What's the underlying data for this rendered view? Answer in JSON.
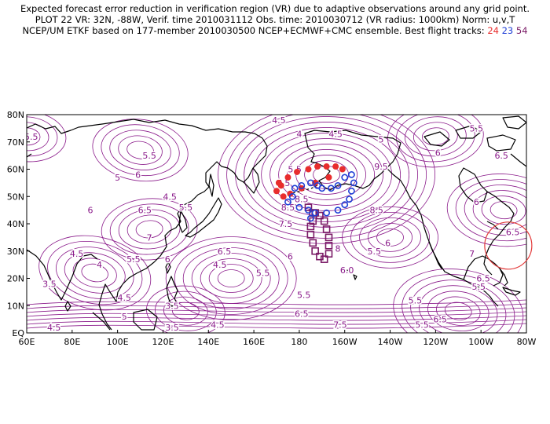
{
  "header": {
    "line1": "Expected forecast error reduction in verification region (VR) due to adaptive observations around any grid point.",
    "line2": "PLOT 22 VR: 32N, -88W, Verif. time 2010031112 Obs. time: 2010030712 (VR radius: 1000km) Norm: u,v,T",
    "line3_prefix": "NCEP/UM ETKF based on 177-member 2010030500 NCEP+ECMWF+CMC ensemble. Best flight tracks:",
    "track_24": "24",
    "track_23": "23",
    "track_54": "54"
  },
  "colors": {
    "contour": "#8a1a8a",
    "track_24": "#e82d2d",
    "track_23": "#1f3fd6",
    "track_54": "#7a1b66",
    "verification_circle": "#e33b3b",
    "coastline": "#000000"
  },
  "axes": {
    "lat_labels": [
      "80N",
      "70N",
      "60N",
      "50N",
      "40N",
      "30N",
      "20N",
      "10N",
      "EQ"
    ],
    "lon_labels": [
      "60E",
      "80E",
      "100E",
      "120E",
      "140E",
      "160E",
      "180",
      "160W",
      "140W",
      "120W",
      "100W",
      "80W"
    ]
  },
  "contour_labels": [
    {
      "text": "4.5",
      "lon": 171,
      "lat": 78
    },
    {
      "text": "5.5",
      "lon": 62,
      "lat": 72
    },
    {
      "text": "5.5",
      "lon": 114,
      "lat": 65
    },
    {
      "text": "4",
      "lon": 180,
      "lat": 73
    },
    {
      "text": "4.5",
      "lon": 196,
      "lat": 73
    },
    {
      "text": "5",
      "lon": 216,
      "lat": 71
    },
    {
      "text": "5.5",
      "lon": 258,
      "lat": 75
    },
    {
      "text": "6",
      "lon": 109,
      "lat": 58
    },
    {
      "text": "5",
      "lon": 100,
      "lat": 57
    },
    {
      "text": "6.5",
      "lon": 269,
      "lat": 65
    },
    {
      "text": "5.5",
      "lon": 178,
      "lat": 60
    },
    {
      "text": "7.5",
      "lon": 173,
      "lat": 55
    },
    {
      "text": "9.5",
      "lon": 216,
      "lat": 61
    },
    {
      "text": "4.5",
      "lon": 123,
      "lat": 50
    },
    {
      "text": "5.5",
      "lon": 130,
      "lat": 46
    },
    {
      "text": "6",
      "lon": 241,
      "lat": 66
    },
    {
      "text": "8.5",
      "lon": 181,
      "lat": 49
    },
    {
      "text": "6",
      "lon": 88,
      "lat": 45
    },
    {
      "text": "6.5",
      "lon": 112,
      "lat": 45
    },
    {
      "text": "8.5",
      "lon": 175,
      "lat": 46
    },
    {
      "text": "8.5",
      "lon": 214,
      "lat": 45
    },
    {
      "text": "6",
      "lon": 258,
      "lat": 48
    },
    {
      "text": "7.5",
      "lon": 174,
      "lat": 40
    },
    {
      "text": "7",
      "lon": 114,
      "lat": 35
    },
    {
      "text": "6.5",
      "lon": 274,
      "lat": 37
    },
    {
      "text": "4.5",
      "lon": 82,
      "lat": 29
    },
    {
      "text": "5.5",
      "lon": 107,
      "lat": 27
    },
    {
      "text": "6",
      "lon": 122,
      "lat": 27
    },
    {
      "text": "6.5",
      "lon": 147,
      "lat": 30
    },
    {
      "text": "6",
      "lon": 176,
      "lat": 28
    },
    {
      "text": "8",
      "lon": 197,
      "lat": 31
    },
    {
      "text": "5.5",
      "lon": 213,
      "lat": 30
    },
    {
      "text": "6",
      "lon": 219,
      "lat": 33
    },
    {
      "text": "7",
      "lon": 256,
      "lat": 29
    },
    {
      "text": "4",
      "lon": 92,
      "lat": 25
    },
    {
      "text": "5.5",
      "lon": 164,
      "lat": 22
    },
    {
      "text": "4.5",
      "lon": 145,
      "lat": 25
    },
    {
      "text": "6.0",
      "lon": 201,
      "lat": 23
    },
    {
      "text": "6.5",
      "lon": 261,
      "lat": 20
    },
    {
      "text": "3.5",
      "lon": 70,
      "lat": 18
    },
    {
      "text": "5.5",
      "lon": 259,
      "lat": 17
    },
    {
      "text": "4.5",
      "lon": 103,
      "lat": 13
    },
    {
      "text": "5.5",
      "lon": 182,
      "lat": 14
    },
    {
      "text": "5.5",
      "lon": 231,
      "lat": 12
    },
    {
      "text": "3.5",
      "lon": 124,
      "lat": 10
    },
    {
      "text": "6.5",
      "lon": 181,
      "lat": 7
    },
    {
      "text": "5",
      "lon": 103,
      "lat": 6
    },
    {
      "text": "4.5",
      "lon": 72,
      "lat": 2
    },
    {
      "text": "3.5",
      "lon": 124,
      "lat": 2
    },
    {
      "text": "4.5",
      "lon": 144,
      "lat": 3
    },
    {
      "text": "7.5",
      "lon": 198,
      "lat": 3
    },
    {
      "text": "5.5",
      "lon": 234,
      "lat": 3
    },
    {
      "text": "6.5",
      "lon": 242,
      "lat": 5
    }
  ],
  "tracks": {
    "t24": [
      [
        172,
        54
      ],
      [
        175,
        57
      ],
      [
        179,
        59
      ],
      [
        184,
        60
      ],
      [
        188,
        61
      ],
      [
        192,
        61
      ],
      [
        196,
        61
      ],
      [
        199,
        60
      ],
      [
        193,
        57
      ],
      [
        187,
        55
      ],
      [
        181,
        53
      ],
      [
        176,
        51
      ],
      [
        173,
        50
      ],
      [
        170,
        52
      ],
      [
        171,
        55
      ]
    ],
    "t23": [
      [
        175,
        48
      ],
      [
        177,
        50
      ],
      [
        178,
        53
      ],
      [
        181,
        54
      ],
      [
        185,
        55
      ],
      [
        188,
        54
      ],
      [
        190,
        53
      ],
      [
        194,
        53
      ],
      [
        197,
        54
      ],
      [
        200,
        57
      ],
      [
        203,
        58
      ],
      [
        204,
        55
      ],
      [
        203,
        52
      ],
      [
        202,
        49
      ],
      [
        200,
        47
      ],
      [
        197,
        45
      ],
      [
        192,
        44
      ],
      [
        187,
        44
      ],
      [
        185,
        42
      ],
      [
        184,
        45
      ],
      [
        180,
        46
      ]
    ],
    "t54": [
      [
        184,
        46
      ],
      [
        186,
        44
      ],
      [
        186,
        41
      ],
      [
        185,
        39
      ],
      [
        185,
        36
      ],
      [
        186,
        33
      ],
      [
        187,
        30
      ],
      [
        189,
        28
      ],
      [
        191,
        27
      ],
      [
        193,
        29
      ],
      [
        193,
        32
      ],
      [
        193,
        35
      ],
      [
        192,
        38
      ],
      [
        191,
        41
      ],
      [
        189,
        43
      ],
      [
        187,
        44
      ]
    ]
  },
  "verification_region": {
    "lat": 32,
    "lon": 272
  }
}
